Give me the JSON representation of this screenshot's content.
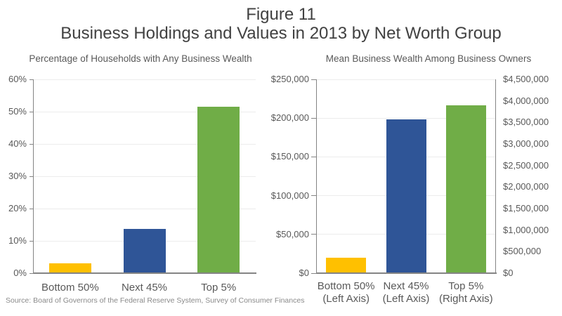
{
  "figure": {
    "title_line1": "Figure 11",
    "title_line2": "Business Holdings and Values in 2013 by Net Worth Group",
    "source_note": "Source: Board of Governors of the Federal Reserve System, Survey of Consumer Finances"
  },
  "palette": {
    "bottom50_color": "#FFC000",
    "next45_color": "#2F5597",
    "top5_color": "#70AD47",
    "gridline_color": "#ECECEC",
    "axis_color": "#848484",
    "title_text_color": "#414141",
    "label_text_color": "#595959",
    "source_text_color": "#8A8A8A"
  },
  "chart_data": [
    {
      "type": "bar",
      "title": "Percentage of Households with Any Business Wealth",
      "categories": [
        "Bottom 50%",
        "Next 45%",
        "Top 5%"
      ],
      "values": [
        3,
        13.7,
        51.5
      ],
      "unit": "percent of households",
      "ylim": [
        0,
        60
      ],
      "yticks": [
        0,
        10,
        20,
        30,
        40,
        50,
        60
      ],
      "ytick_labels": [
        "0%",
        "10%",
        "20%",
        "30%",
        "40%",
        "50%",
        "60%"
      ],
      "grid": true,
      "legend": false,
      "bar_colors": [
        "#FFC000",
        "#2F5597",
        "#70AD47"
      ]
    },
    {
      "type": "bar",
      "title": "Mean Business Wealth Among Business Owners",
      "categories": [
        "Bottom 50%",
        "Next 45%",
        "Top 5%"
      ],
      "category_sublabels": [
        "(Left Axis)",
        "(Left Axis)",
        "(Right Axis)"
      ],
      "values": [
        20000,
        198000,
        3900000
      ],
      "value_axes": [
        "left",
        "left",
        "right"
      ],
      "unit": "dollars",
      "left_ylim": [
        0,
        250000
      ],
      "left_yticks": [
        0,
        50000,
        100000,
        150000,
        200000,
        250000
      ],
      "left_ytick_labels": [
        "$0",
        "$50,000",
        "$100,000",
        "$150,000",
        "$200,000",
        "$250,000"
      ],
      "right_ylim": [
        0,
        4500000
      ],
      "right_yticks": [
        0,
        500000,
        1000000,
        1500000,
        2000000,
        2500000,
        3000000,
        3500000,
        4000000,
        4500000
      ],
      "right_ytick_labels": [
        "$0",
        "$500,000",
        "$1,000,000",
        "$1,500,000",
        "$2,000,000",
        "$2,500,000",
        "$3,000,000",
        "$3,500,000",
        "$4,000,000",
        "$4,500,000"
      ],
      "grid": true,
      "legend": false,
      "bar_colors": [
        "#FFC000",
        "#2F5597",
        "#70AD47"
      ]
    }
  ]
}
